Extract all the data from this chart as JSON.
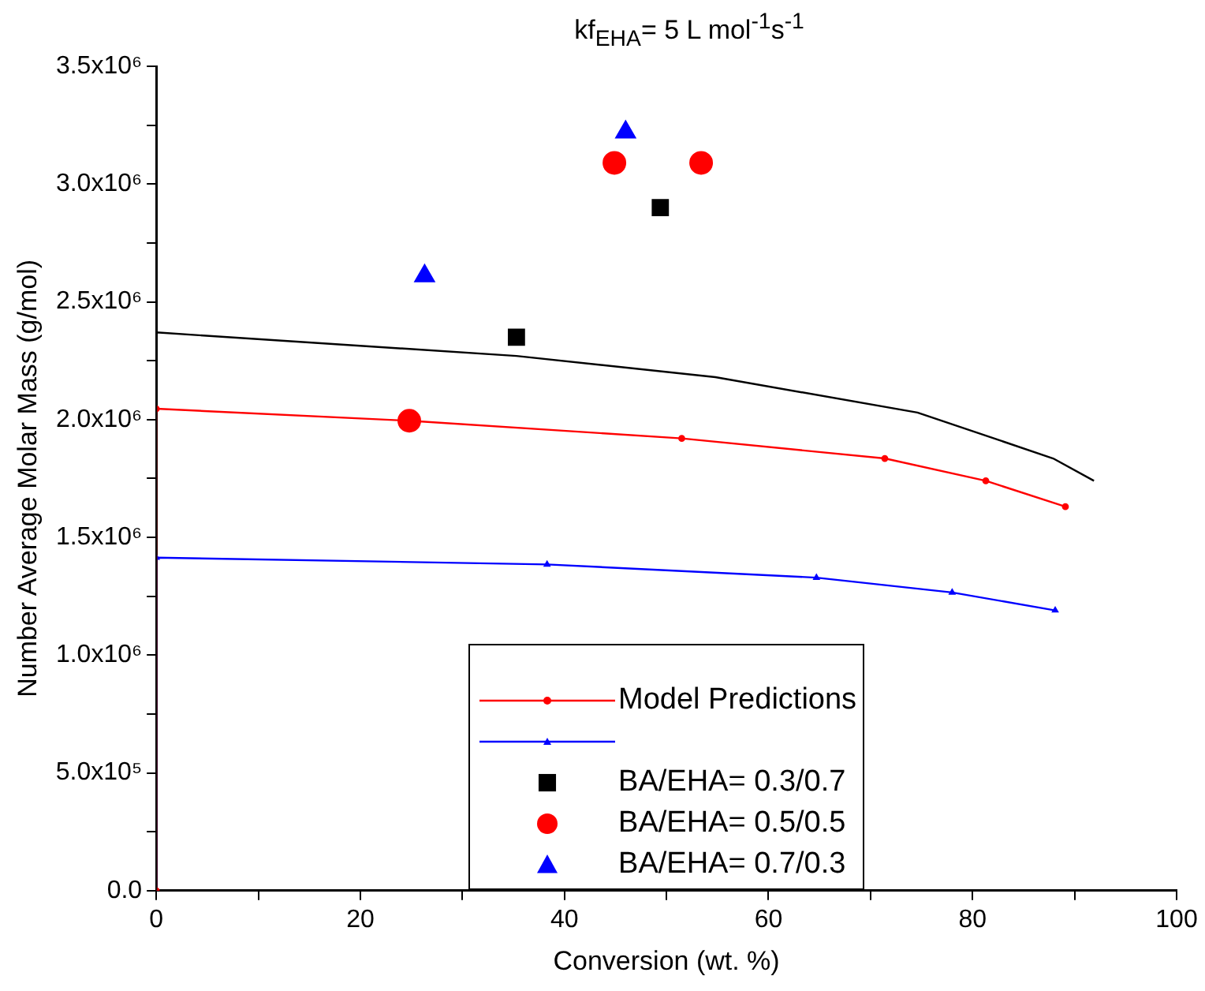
{
  "chart_data": {
    "type": "line",
    "title": "kf$_{EHA}$= 5 L mol$^{-1}$s$^{-1}$",
    "xlabel": "Conversion (wt. %)",
    "ylabel": "Number Average Molar Mass (g/mol)",
    "xlim": [
      0,
      100
    ],
    "xticks": [
      0,
      {
        "value": 10,
        "label": null
      },
      20,
      {
        "value": 30,
        "label": null
      },
      40,
      {
        "value": 50,
        "label": null
      },
      60,
      {
        "value": 70,
        "label": null
      },
      80,
      {
        "value": 90,
        "label": null
      },
      100
    ],
    "ylim": [
      0,
      3500000
    ],
    "yticks": [
      {
        "value": 0,
        "label": "0.0"
      },
      {
        "value": 250000,
        "label": null
      },
      {
        "value": 500000,
        "label": "5.0x10⁵"
      },
      {
        "value": 750000,
        "label": null
      },
      {
        "value": 1000000,
        "label": "1.0x10⁶"
      },
      {
        "value": 1250000,
        "label": null
      },
      {
        "value": 1500000,
        "label": "1.5x10⁶"
      },
      {
        "value": 1750000,
        "label": null
      },
      {
        "value": 2000000,
        "label": "2.0x10⁶"
      },
      {
        "value": 2250000,
        "label": null
      },
      {
        "value": 2500000,
        "label": "2.5x10⁶"
      },
      {
        "value": 2750000,
        "label": null
      },
      {
        "value": 3000000,
        "label": "3.0x10⁶"
      },
      {
        "value": 3250000,
        "label": null
      },
      {
        "value": 3500000,
        "label": "3.5x10⁶"
      }
    ],
    "grid": false,
    "legend": "bottom",
    "series": [
      {
        "color": "#000000",
        "marker": "none",
        "x": [
          0,
          0,
          35.3,
          54.8,
          74.6,
          87.9,
          91.9
        ],
        "values": [
          0,
          2370000,
          2270000,
          2180000,
          2030000,
          1835000,
          1740000
        ]
      },
      {
        "name": "Model Predictions",
        "color": "#ff0000",
        "marker": "circle",
        "x": [
          0,
          0,
          24.8,
          51.5,
          71.4,
          81.3,
          89.1
        ],
        "values": [
          0,
          2046000,
          1995000,
          1920000,
          1835000,
          1740000,
          1630000
        ]
      },
      {
        "color": "#0000ff",
        "marker": "triangle",
        "x": [
          0,
          0,
          38.3,
          64.7,
          78,
          88.1
        ],
        "values": [
          0,
          1414000,
          1385000,
          1329000,
          1266000,
          1190000
        ]
      },
      {
        "type": "scatter",
        "name": "BA/EHA= 0.3/0.7",
        "color": "#000000",
        "marker": "square",
        "x": [
          35.3,
          49.4
        ],
        "values": [
          2350000,
          2900000
        ]
      },
      {
        "type": "scatter",
        "name": "BA/EHA= 0.5/0.5",
        "color": "#ff0000",
        "marker": "circle",
        "x": [
          24.8,
          44.9,
          53.4
        ],
        "values": [
          1995000,
          3090000,
          3090000
        ]
      },
      {
        "type": "scatter",
        "name": "BA/EHA= 0.7/0.3",
        "color": "#0000ff",
        "marker": "triangle",
        "x": [
          26.3,
          46.0
        ],
        "values": [
          2610000,
          3220000
        ]
      }
    ]
  }
}
